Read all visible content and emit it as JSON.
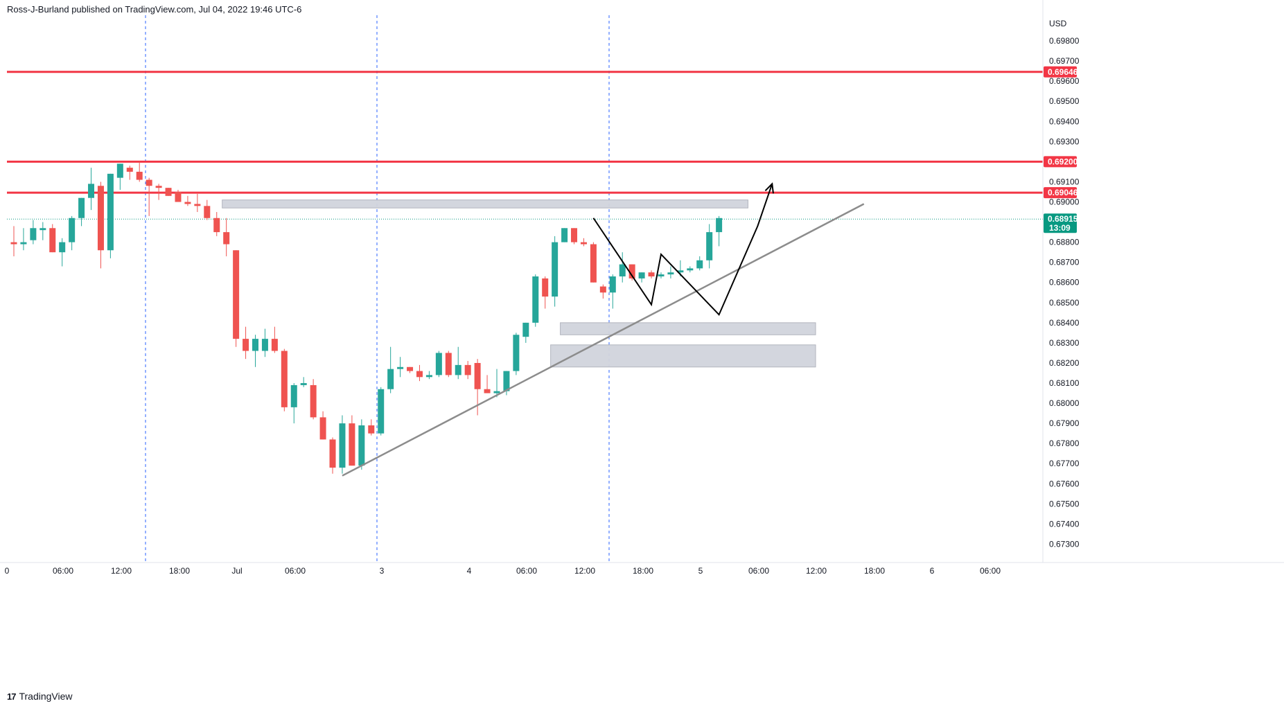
{
  "header": {
    "publisher": "Ross-J-Burland published on TradingView.com, Jul 04, 2022 19:46 UTC-6"
  },
  "footer": {
    "logo_glyph": "17",
    "brand": "TradingView"
  },
  "colors": {
    "up": "#26a69a",
    "down": "#ef5350",
    "level": "#f23645",
    "grid_dash": "#2962ff",
    "trend": "#8c8c8c",
    "zone": "#d1d4dc",
    "current_price": "#089981",
    "drawing": "#000000"
  },
  "chart_data": {
    "type": "candlestick",
    "currency": "USD",
    "ylim": [
      0.6725,
      0.699
    ],
    "y_ticks": [
      "0.69800",
      "0.69700",
      "0.69600",
      "0.69500",
      "0.69400",
      "0.69300",
      "0.69100",
      "0.69000",
      "0.68800",
      "0.68700",
      "0.68600",
      "0.68500",
      "0.68400",
      "0.68300",
      "0.68200",
      "0.68100",
      "0.68000",
      "0.67900",
      "0.67800",
      "0.67700",
      "0.67600",
      "0.67500",
      "0.67400",
      "0.67300"
    ],
    "x_ticks": [
      "0",
      "06:00",
      "12:00",
      "18:00",
      "Jul",
      "06:00",
      "3",
      "4",
      "06:00",
      "12:00",
      "18:00",
      "5",
      "06:00",
      "12:00",
      "18:00",
      "6",
      "06:00"
    ],
    "session_separators": [
      "Jun 30 14:00",
      "Jul 3 15:00",
      "Jul 4 15:00"
    ],
    "horizontal_levels": [
      {
        "price": 0.69646,
        "label": "0.69646"
      },
      {
        "price": 0.692,
        "label": "0.69200"
      },
      {
        "price": 0.69046,
        "label": "0.69046"
      }
    ],
    "current_price": {
      "price": 0.68915,
      "label": "0.68915",
      "countdown": "13:09"
    },
    "candles": [
      {
        "o": 0.688,
        "h": 0.6888,
        "l": 0.6873,
        "c": 0.6879
      },
      {
        "o": 0.6879,
        "h": 0.6887,
        "l": 0.6876,
        "c": 0.688
      },
      {
        "o": 0.6881,
        "h": 0.6891,
        "l": 0.6879,
        "c": 0.6887
      },
      {
        "o": 0.6886,
        "h": 0.689,
        "l": 0.6881,
        "c": 0.6887
      },
      {
        "o": 0.6887,
        "h": 0.6889,
        "l": 0.6875,
        "c": 0.6875
      },
      {
        "o": 0.6875,
        "h": 0.6882,
        "l": 0.6868,
        "c": 0.688
      },
      {
        "o": 0.688,
        "h": 0.6893,
        "l": 0.6876,
        "c": 0.6892
      },
      {
        "o": 0.6892,
        "h": 0.6902,
        "l": 0.6888,
        "c": 0.6902
      },
      {
        "o": 0.6902,
        "h": 0.6917,
        "l": 0.6896,
        "c": 0.6909
      },
      {
        "o": 0.6908,
        "h": 0.691,
        "l": 0.6867,
        "c": 0.6876
      },
      {
        "o": 0.6876,
        "h": 0.6914,
        "l": 0.6872,
        "c": 0.6914
      },
      {
        "o": 0.6912,
        "h": 0.6919,
        "l": 0.6906,
        "c": 0.6919
      },
      {
        "o": 0.6917,
        "h": 0.6918,
        "l": 0.6911,
        "c": 0.6915
      },
      {
        "o": 0.6915,
        "h": 0.692,
        "l": 0.691,
        "c": 0.6911
      },
      {
        "o": 0.6911,
        "h": 0.6912,
        "l": 0.6893,
        "c": 0.6908
      },
      {
        "o": 0.6908,
        "h": 0.6909,
        "l": 0.6901,
        "c": 0.6907
      },
      {
        "o": 0.6907,
        "h": 0.6907,
        "l": 0.6903,
        "c": 0.6903
      },
      {
        "o": 0.6905,
        "h": 0.6906,
        "l": 0.69,
        "c": 0.69
      },
      {
        "o": 0.69,
        "h": 0.6903,
        "l": 0.6898,
        "c": 0.6899
      },
      {
        "o": 0.6899,
        "h": 0.6904,
        "l": 0.6895,
        "c": 0.6898
      },
      {
        "o": 0.6898,
        "h": 0.6901,
        "l": 0.6891,
        "c": 0.6892
      },
      {
        "o": 0.6892,
        "h": 0.6895,
        "l": 0.6883,
        "c": 0.6885
      },
      {
        "o": 0.6885,
        "h": 0.6892,
        "l": 0.6873,
        "c": 0.6879
      },
      {
        "o": 0.6876,
        "h": 0.6876,
        "l": 0.6828,
        "c": 0.6832
      },
      {
        "o": 0.6832,
        "h": 0.6838,
        "l": 0.6822,
        "c": 0.6826
      },
      {
        "o": 0.6826,
        "h": 0.6834,
        "l": 0.6818,
        "c": 0.6832
      },
      {
        "o": 0.6826,
        "h": 0.6837,
        "l": 0.6823,
        "c": 0.6832
      },
      {
        "o": 0.6832,
        "h": 0.6838,
        "l": 0.6825,
        "c": 0.6826
      },
      {
        "o": 0.6826,
        "h": 0.6827,
        "l": 0.6796,
        "c": 0.6798
      },
      {
        "o": 0.6798,
        "h": 0.681,
        "l": 0.679,
        "c": 0.6809
      },
      {
        "o": 0.6809,
        "h": 0.6813,
        "l": 0.6808,
        "c": 0.681
      },
      {
        "o": 0.6809,
        "h": 0.6812,
        "l": 0.6792,
        "c": 0.6793
      },
      {
        "o": 0.6793,
        "h": 0.6796,
        "l": 0.6782,
        "c": 0.6782
      },
      {
        "o": 0.6782,
        "h": 0.6783,
        "l": 0.6765,
        "c": 0.6768
      },
      {
        "o": 0.6768,
        "h": 0.6794,
        "l": 0.6765,
        "c": 0.679
      },
      {
        "o": 0.679,
        "h": 0.6794,
        "l": 0.6769,
        "c": 0.6769
      },
      {
        "o": 0.6769,
        "h": 0.6792,
        "l": 0.6767,
        "c": 0.6789
      },
      {
        "o": 0.6789,
        "h": 0.6792,
        "l": 0.6784,
        "c": 0.6785
      },
      {
        "o": 0.6785,
        "h": 0.6808,
        "l": 0.6784,
        "c": 0.6807
      },
      {
        "o": 0.6807,
        "h": 0.6828,
        "l": 0.6805,
        "c": 0.6817
      },
      {
        "o": 0.6817,
        "h": 0.6823,
        "l": 0.6813,
        "c": 0.6818
      },
      {
        "o": 0.6818,
        "h": 0.6818,
        "l": 0.6815,
        "c": 0.6816
      },
      {
        "o": 0.6816,
        "h": 0.6819,
        "l": 0.6811,
        "c": 0.6813
      },
      {
        "o": 0.6813,
        "h": 0.6816,
        "l": 0.6812,
        "c": 0.6814
      },
      {
        "o": 0.6814,
        "h": 0.6826,
        "l": 0.6813,
        "c": 0.6825
      },
      {
        "o": 0.6825,
        "h": 0.6826,
        "l": 0.6813,
        "c": 0.6814
      },
      {
        "o": 0.6814,
        "h": 0.6828,
        "l": 0.6812,
        "c": 0.6819
      },
      {
        "o": 0.6819,
        "h": 0.6821,
        "l": 0.6812,
        "c": 0.6814
      },
      {
        "o": 0.682,
        "h": 0.6822,
        "l": 0.6794,
        "c": 0.6807
      },
      {
        "o": 0.6807,
        "h": 0.6814,
        "l": 0.6805,
        "c": 0.6805
      },
      {
        "o": 0.6805,
        "h": 0.6817,
        "l": 0.6803,
        "c": 0.6806
      },
      {
        "o": 0.6806,
        "h": 0.6816,
        "l": 0.6804,
        "c": 0.6816
      },
      {
        "o": 0.6816,
        "h": 0.6835,
        "l": 0.6814,
        "c": 0.6834
      },
      {
        "o": 0.6833,
        "h": 0.684,
        "l": 0.683,
        "c": 0.684
      },
      {
        "o": 0.684,
        "h": 0.6864,
        "l": 0.6838,
        "c": 0.6863
      },
      {
        "o": 0.6862,
        "h": 0.6863,
        "l": 0.6847,
        "c": 0.6853
      },
      {
        "o": 0.6853,
        "h": 0.6883,
        "l": 0.6848,
        "c": 0.688
      },
      {
        "o": 0.688,
        "h": 0.6887,
        "l": 0.688,
        "c": 0.6887
      },
      {
        "o": 0.6887,
        "h": 0.6887,
        "l": 0.6879,
        "c": 0.688
      },
      {
        "o": 0.688,
        "h": 0.6882,
        "l": 0.6878,
        "c": 0.6879
      },
      {
        "o": 0.6879,
        "h": 0.688,
        "l": 0.686,
        "c": 0.686
      },
      {
        "o": 0.6858,
        "h": 0.6859,
        "l": 0.6852,
        "c": 0.6855
      },
      {
        "o": 0.6855,
        "h": 0.6864,
        "l": 0.6847,
        "c": 0.6863
      },
      {
        "o": 0.6863,
        "h": 0.6875,
        "l": 0.686,
        "c": 0.6869
      },
      {
        "o": 0.6869,
        "h": 0.6869,
        "l": 0.6861,
        "c": 0.6862
      },
      {
        "o": 0.6862,
        "h": 0.6865,
        "l": 0.686,
        "c": 0.6865
      },
      {
        "o": 0.6865,
        "h": 0.6866,
        "l": 0.6862,
        "c": 0.6863
      },
      {
        "o": 0.6863,
        "h": 0.6865,
        "l": 0.6862,
        "c": 0.6864
      },
      {
        "o": 0.6864,
        "h": 0.6868,
        "l": 0.6862,
        "c": 0.6865
      },
      {
        "o": 0.6865,
        "h": 0.6871,
        "l": 0.6863,
        "c": 0.6866
      },
      {
        "o": 0.6866,
        "h": 0.6868,
        "l": 0.6865,
        "c": 0.6867
      },
      {
        "o": 0.6867,
        "h": 0.6873,
        "l": 0.6866,
        "c": 0.6871
      },
      {
        "o": 0.6871,
        "h": 0.6889,
        "l": 0.6867,
        "c": 0.6885
      },
      {
        "o": 0.6885,
        "h": 0.6893,
        "l": 0.6878,
        "c": 0.6892
      }
    ],
    "zones": [
      {
        "x_from_candle": 22,
        "x_to_candle": 76,
        "low": 0.6897,
        "high": 0.6901
      },
      {
        "x_from_candle": 57,
        "x_to_candle": 83,
        "low": 0.6834,
        "high": 0.684
      },
      {
        "x_from_candle": 56,
        "x_to_candle": 83,
        "low": 0.6818,
        "high": 0.6829
      }
    ],
    "trendline": {
      "from_candle": 34,
      "from_price": 0.6764,
      "to_candle": 88,
      "to_price": 0.6899
    },
    "pattern_path": [
      {
        "candle": 60,
        "price": 0.6892
      },
      {
        "candle": 66,
        "price": 0.6849
      },
      {
        "candle": 67,
        "price": 0.6874
      },
      {
        "candle": 73,
        "price": 0.6844
      },
      {
        "candle": 77,
        "price": 0.6888
      },
      {
        "candle": 78.5,
        "price": 0.6909
      }
    ]
  }
}
